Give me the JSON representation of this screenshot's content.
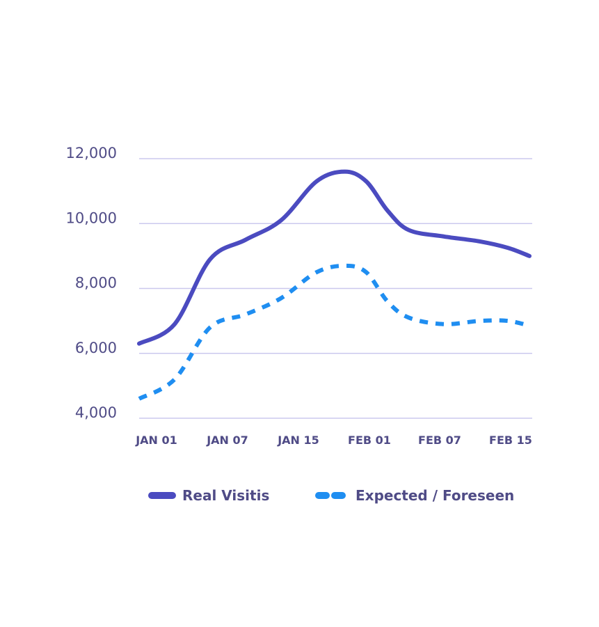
{
  "chart_data": {
    "type": "line",
    "title": "",
    "xlabel": "",
    "ylabel": "",
    "ylim": [
      4000,
      12000
    ],
    "y_ticks": [
      12000,
      10000,
      8000,
      6000,
      4000
    ],
    "y_tick_labels": [
      "12,000",
      "10,000",
      "8,000",
      "6,000",
      "4,000"
    ],
    "categories": [
      "JAN 01",
      "JAN 07",
      "JAN 15",
      "FEB 01",
      "FEB 07",
      "FEB 15"
    ],
    "grid": true,
    "legend_position": "bottom",
    "series": [
      {
        "name": "Real Visitis",
        "style": "solid",
        "color": "#4b4bc0",
        "points": [
          [
            0.0,
            6300
          ],
          [
            0.5,
            6900
          ],
          [
            1.0,
            8900
          ],
          [
            1.5,
            9500
          ],
          [
            2.0,
            10100
          ],
          [
            2.5,
            11300
          ],
          [
            2.9,
            11600
          ],
          [
            3.2,
            11300
          ],
          [
            3.5,
            10400
          ],
          [
            3.8,
            9800
          ],
          [
            4.3,
            9600
          ],
          [
            4.8,
            9450
          ],
          [
            5.2,
            9250
          ],
          [
            5.5,
            9000
          ]
        ]
      },
      {
        "name": "Expected / Foreseen",
        "style": "dashed",
        "color": "#1f8ef1",
        "points": [
          [
            0.0,
            4600
          ],
          [
            0.5,
            5200
          ],
          [
            1.0,
            6800
          ],
          [
            1.5,
            7200
          ],
          [
            2.0,
            7700
          ],
          [
            2.5,
            8500
          ],
          [
            2.9,
            8700
          ],
          [
            3.2,
            8500
          ],
          [
            3.5,
            7600
          ],
          [
            3.8,
            7100
          ],
          [
            4.3,
            6900
          ],
          [
            4.8,
            7000
          ],
          [
            5.2,
            7000
          ],
          [
            5.5,
            6850
          ]
        ]
      }
    ]
  }
}
